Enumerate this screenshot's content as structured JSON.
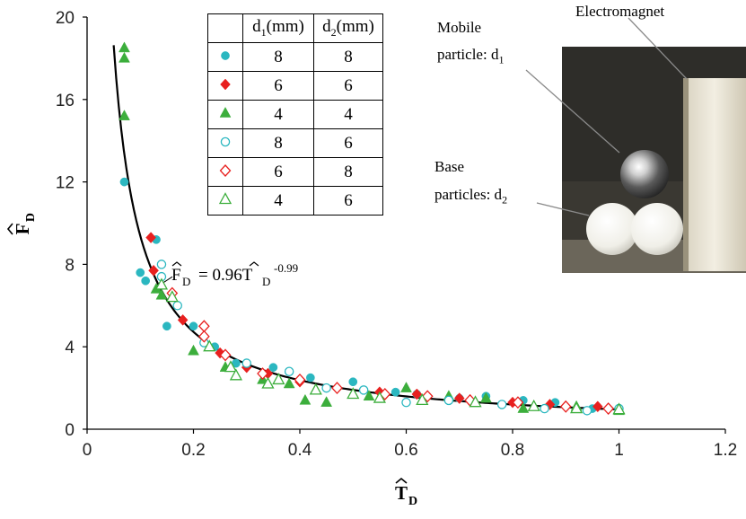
{
  "chart_data": {
    "type": "scatter",
    "xlabel": "T̂D",
    "ylabel": "F̂D",
    "xlim": [
      0,
      1.2
    ],
    "ylim": [
      0,
      20
    ],
    "xticks": [
      "0",
      "0.2",
      "0.4",
      "0.6",
      "0.8",
      "1",
      "1.2"
    ],
    "yticks": [
      "0",
      "4",
      "8",
      "12",
      "16",
      "20"
    ],
    "fit": {
      "label_lhs": "F̂D = 0.96T̂D",
      "label_exp": "-0.99",
      "coef": 0.96,
      "exponent": -0.99,
      "x_range": [
        0.05,
        1.0
      ]
    },
    "legend": {
      "headers": [
        "d1(mm)",
        "d2(mm)"
      ],
      "rows": [
        {
          "d1": "8",
          "d2": "8",
          "marker": "circle",
          "filled": true,
          "color": "#2bb7c0"
        },
        {
          "d1": "6",
          "d2": "6",
          "marker": "diamond",
          "filled": true,
          "color": "#e8201f"
        },
        {
          "d1": "4",
          "d2": "4",
          "marker": "triangle",
          "filled": true,
          "color": "#3cae3c"
        },
        {
          "d1": "8",
          "d2": "6",
          "marker": "circle",
          "filled": false,
          "color": "#2bb7c0"
        },
        {
          "d1": "6",
          "d2": "8",
          "marker": "diamond",
          "filled": false,
          "color": "#e8201f"
        },
        {
          "d1": "4",
          "d2": "6",
          "marker": "triangle",
          "filled": false,
          "color": "#3cae3c"
        }
      ]
    },
    "series": [
      {
        "name": "8/8",
        "points": [
          [
            0.07,
            12.0
          ],
          [
            0.1,
            7.6
          ],
          [
            0.11,
            7.2
          ],
          [
            0.13,
            9.2
          ],
          [
            0.15,
            5.0
          ],
          [
            0.2,
            5.0
          ],
          [
            0.24,
            4.0
          ],
          [
            0.28,
            3.2
          ],
          [
            0.35,
            3.0
          ],
          [
            0.42,
            2.5
          ],
          [
            0.5,
            2.3
          ],
          [
            0.58,
            1.8
          ],
          [
            0.62,
            1.7
          ],
          [
            0.7,
            1.5
          ],
          [
            0.75,
            1.6
          ],
          [
            0.82,
            1.4
          ],
          [
            0.88,
            1.3
          ],
          [
            0.95,
            1.0
          ],
          [
            1.0,
            1.0
          ]
        ]
      },
      {
        "name": "6/6",
        "points": [
          [
            0.12,
            9.3
          ],
          [
            0.125,
            7.7
          ],
          [
            0.18,
            5.3
          ],
          [
            0.25,
            3.7
          ],
          [
            0.3,
            3.0
          ],
          [
            0.34,
            2.7
          ],
          [
            0.4,
            2.3
          ],
          [
            0.47,
            2.0
          ],
          [
            0.55,
            1.8
          ],
          [
            0.62,
            1.7
          ],
          [
            0.7,
            1.5
          ],
          [
            0.8,
            1.3
          ],
          [
            0.87,
            1.2
          ],
          [
            0.96,
            1.1
          ]
        ]
      },
      {
        "name": "4/4",
        "points": [
          [
            0.07,
            18.5
          ],
          [
            0.07,
            18.0
          ],
          [
            0.07,
            15.2
          ],
          [
            0.13,
            6.8
          ],
          [
            0.14,
            6.5
          ],
          [
            0.2,
            3.8
          ],
          [
            0.26,
            3.0
          ],
          [
            0.33,
            2.4
          ],
          [
            0.38,
            2.2
          ],
          [
            0.41,
            1.4
          ],
          [
            0.45,
            1.3
          ],
          [
            0.53,
            1.6
          ],
          [
            0.6,
            2.0
          ],
          [
            0.68,
            1.6
          ],
          [
            0.75,
            1.5
          ],
          [
            0.82,
            1.0
          ],
          [
            0.92,
            1.1
          ],
          [
            1.0,
            0.9
          ]
        ]
      },
      {
        "name": "8/6",
        "points": [
          [
            0.14,
            8.0
          ],
          [
            0.14,
            7.4
          ],
          [
            0.17,
            6.0
          ],
          [
            0.22,
            4.2
          ],
          [
            0.3,
            3.2
          ],
          [
            0.38,
            2.8
          ],
          [
            0.45,
            2.0
          ],
          [
            0.52,
            1.9
          ],
          [
            0.6,
            1.3
          ],
          [
            0.68,
            1.4
          ],
          [
            0.78,
            1.2
          ],
          [
            0.86,
            1.0
          ],
          [
            0.94,
            0.9
          ],
          [
            1.0,
            1.0
          ]
        ]
      },
      {
        "name": "6/8",
        "points": [
          [
            0.16,
            6.6
          ],
          [
            0.22,
            5.0
          ],
          [
            0.22,
            4.5
          ],
          [
            0.26,
            3.6
          ],
          [
            0.33,
            2.7
          ],
          [
            0.4,
            2.4
          ],
          [
            0.47,
            2.0
          ],
          [
            0.56,
            1.7
          ],
          [
            0.64,
            1.6
          ],
          [
            0.72,
            1.4
          ],
          [
            0.81,
            1.3
          ],
          [
            0.9,
            1.1
          ],
          [
            0.98,
            1.0
          ]
        ]
      },
      {
        "name": "4/6",
        "points": [
          [
            0.14,
            7.0
          ],
          [
            0.16,
            6.4
          ],
          [
            0.23,
            4.0
          ],
          [
            0.27,
            3.0
          ],
          [
            0.28,
            2.6
          ],
          [
            0.34,
            2.2
          ],
          [
            0.36,
            2.4
          ],
          [
            0.43,
            1.9
          ],
          [
            0.5,
            1.7
          ],
          [
            0.55,
            1.5
          ],
          [
            0.63,
            1.4
          ],
          [
            0.73,
            1.3
          ],
          [
            0.84,
            1.1
          ],
          [
            0.92,
            1.0
          ],
          [
            1.0,
            0.95
          ]
        ]
      }
    ]
  },
  "annotations": {
    "mobile_line1": "Mobile",
    "mobile_line2": "particle: d1",
    "electromagnet": "Electromagnet",
    "base_line1": "Base",
    "base_line2": "particles: d2"
  },
  "colors": {
    "cyan": "#2bb7c0",
    "red": "#e8201f",
    "green": "#3cae3c"
  }
}
